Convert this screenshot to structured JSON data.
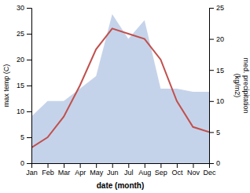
{
  "chart_data": {
    "type": "line",
    "categories": [
      "Jan",
      "Feb",
      "Mar",
      "Apr",
      "May",
      "Jun",
      "Jul",
      "Aug",
      "Sep",
      "Oct",
      "Nov",
      "Dec"
    ],
    "series": [
      {
        "type": "area",
        "axis": "y2",
        "color": "#c5d3ea",
        "values": [
          7.5,
          10.0,
          10.0,
          12.0,
          14.0,
          24.0,
          20.0,
          23.0,
          12.0,
          12.0,
          11.5,
          11.5
        ]
      },
      {
        "type": "line",
        "color": "#c0504d",
        "values": [
          3.0,
          5.0,
          9.0,
          15.0,
          22.0,
          26.0,
          25.0,
          24.0,
          20.0,
          12.0,
          7.0,
          6.0
        ]
      }
    ],
    "xlabel": "date (month)",
    "ylabel": "max temp (C)",
    "y2label": "med. precipitation\n(kg/m2)",
    "ylim": [
      0,
      30
    ],
    "yticks": [
      0,
      5,
      10,
      15,
      20,
      25,
      30
    ],
    "y2lim": [
      0,
      25
    ],
    "y2ticks": [
      0,
      5,
      10,
      15,
      20,
      25
    ],
    "grid": false
  }
}
